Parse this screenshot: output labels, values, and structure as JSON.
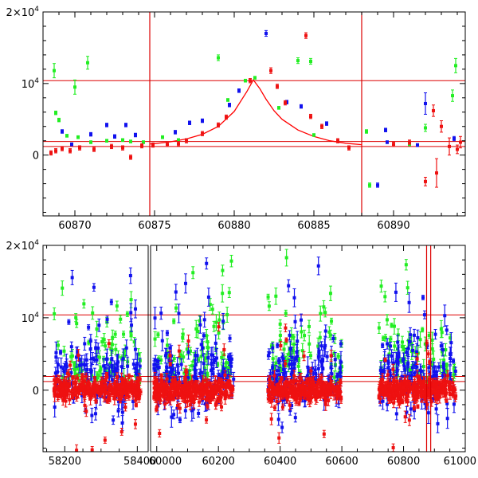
{
  "chart_data": [
    {
      "type": "scatter",
      "panel": "top",
      "title": "",
      "xlabel": "",
      "ylabel": "",
      "xlim": [
        60868,
        60894.5
      ],
      "ylim": [
        -8500,
        20000
      ],
      "x_ticks": [
        60870,
        60875,
        60880,
        60885,
        60890
      ],
      "x_tick_labels": [
        "60870",
        "60875",
        "60880",
        "60885",
        "60890"
      ],
      "y_ticks": [
        0,
        10000,
        20000
      ],
      "y_tick_labels": [
        {
          "base": "0",
          "sup": ""
        },
        {
          "base": "10",
          "sup": "4"
        },
        {
          "base": "2×10",
          "sup": "4"
        }
      ],
      "hlines": [
        1200,
        1900,
        10400
      ],
      "vlines": [
        60874.7,
        60888.0
      ],
      "model_curve": {
        "name": "model",
        "color": "#ff0000",
        "x": [
          60874.7,
          60875,
          60876,
          60877,
          60878,
          60879,
          60880,
          60880.8,
          60881.2,
          60881.6,
          60882,
          60882.5,
          60883,
          60884,
          60885,
          60886,
          60887,
          60888
        ],
        "y": [
          1550,
          1600,
          1850,
          2250,
          2900,
          4000,
          6100,
          8900,
          10500,
          9300,
          7800,
          6200,
          5000,
          3500,
          2600,
          2000,
          1650,
          1450
        ]
      },
      "series": [
        {
          "name": "green",
          "color": "#22ee22",
          "points": [
            {
              "x": 60868.7,
              "y": 11800,
              "err": 1000
            },
            {
              "x": 60868.8,
              "y": 5900,
              "err": 250
            },
            {
              "x": 60869.0,
              "y": 4900,
              "err": 250
            },
            {
              "x": 60869.5,
              "y": 2700,
              "err": 200
            },
            {
              "x": 60869.8,
              "y": 1500,
              "err": 200
            },
            {
              "x": 60870.0,
              "y": 9500,
              "err": 1000
            },
            {
              "x": 60870.2,
              "y": 2500,
              "err": 200
            },
            {
              "x": 60870.8,
              "y": 12900,
              "err": 900
            },
            {
              "x": 60871.0,
              "y": 1800,
              "err": 200
            },
            {
              "x": 60872.0,
              "y": 2000,
              "err": 200
            },
            {
              "x": 60873.0,
              "y": 2100,
              "err": 200
            },
            {
              "x": 60873.5,
              "y": 1900,
              "err": 200
            },
            {
              "x": 60874.3,
              "y": 1800,
              "err": 200
            },
            {
              "x": 60875.5,
              "y": 2500,
              "err": 200
            },
            {
              "x": 60876.5,
              "y": 2100,
              "err": 200
            },
            {
              "x": 60879.0,
              "y": 13600,
              "err": 400
            },
            {
              "x": 60879.6,
              "y": 7700,
              "err": 200
            },
            {
              "x": 60880.7,
              "y": 10400,
              "err": 200
            },
            {
              "x": 60881.3,
              "y": 10800,
              "err": 200
            },
            {
              "x": 60882.8,
              "y": 6600,
              "err": 200
            },
            {
              "x": 60884.0,
              "y": 13200,
              "err": 400
            },
            {
              "x": 60884.8,
              "y": 13100,
              "err": 400
            },
            {
              "x": 60885.0,
              "y": 2800,
              "err": 200
            },
            {
              "x": 60888.3,
              "y": 3300,
              "err": 250
            },
            {
              "x": 60888.5,
              "y": -4200,
              "err": 300
            },
            {
              "x": 60891.0,
              "y": 1500,
              "err": 200
            },
            {
              "x": 60892.0,
              "y": 3800,
              "err": 500
            },
            {
              "x": 60893.7,
              "y": 8300,
              "err": 800
            },
            {
              "x": 60893.9,
              "y": 12500,
              "err": 1000
            }
          ]
        },
        {
          "name": "blue",
          "color": "#1111ee",
          "points": [
            {
              "x": 60869.2,
              "y": 3300,
              "err": 250
            },
            {
              "x": 60869.8,
              "y": 1500,
              "err": 200
            },
            {
              "x": 60871.0,
              "y": 2900,
              "err": 250
            },
            {
              "x": 60872.0,
              "y": 4200,
              "err": 250
            },
            {
              "x": 60872.5,
              "y": 2600,
              "err": 250
            },
            {
              "x": 60873.2,
              "y": 4200,
              "err": 250
            },
            {
              "x": 60873.8,
              "y": 2800,
              "err": 250
            },
            {
              "x": 60876.3,
              "y": 3200,
              "err": 250
            },
            {
              "x": 60877.2,
              "y": 4500,
              "err": 250
            },
            {
              "x": 60878.0,
              "y": 4800,
              "err": 250
            },
            {
              "x": 60879.7,
              "y": 7000,
              "err": 250
            },
            {
              "x": 60880.3,
              "y": 9000,
              "err": 250
            },
            {
              "x": 60882.0,
              "y": 17000,
              "err": 400
            },
            {
              "x": 60883.3,
              "y": 7400,
              "err": 250
            },
            {
              "x": 60884.2,
              "y": 6800,
              "err": 250
            },
            {
              "x": 60885.8,
              "y": 4400,
              "err": 250
            },
            {
              "x": 60889.0,
              "y": -4200,
              "err": 300
            },
            {
              "x": 60889.5,
              "y": 3500,
              "err": 250
            },
            {
              "x": 60889.6,
              "y": 1800,
              "err": 200
            },
            {
              "x": 60891.5,
              "y": 1400,
              "err": 200
            },
            {
              "x": 60892.0,
              "y": 7200,
              "err": 1500
            },
            {
              "x": 60893.8,
              "y": 2300,
              "err": 300
            }
          ]
        },
        {
          "name": "red",
          "color": "#ee1111",
          "points": [
            {
              "x": 60868.5,
              "y": 300,
              "err": 300
            },
            {
              "x": 60868.8,
              "y": 600,
              "err": 300
            },
            {
              "x": 60869.2,
              "y": 900,
              "err": 300
            },
            {
              "x": 60869.7,
              "y": 600,
              "err": 300
            },
            {
              "x": 60870.3,
              "y": 1000,
              "err": 300
            },
            {
              "x": 60871.2,
              "y": 800,
              "err": 300
            },
            {
              "x": 60872.3,
              "y": 1200,
              "err": 300
            },
            {
              "x": 60873.0,
              "y": 1000,
              "err": 300
            },
            {
              "x": 60873.5,
              "y": -300,
              "err": 300
            },
            {
              "x": 60874.2,
              "y": 1300,
              "err": 300
            },
            {
              "x": 60874.9,
              "y": 1400,
              "err": 300
            },
            {
              "x": 60875.8,
              "y": 1500,
              "err": 300
            },
            {
              "x": 60876.5,
              "y": 1600,
              "err": 300
            },
            {
              "x": 60877.0,
              "y": 2000,
              "err": 300
            },
            {
              "x": 60878.0,
              "y": 3000,
              "err": 300
            },
            {
              "x": 60879.0,
              "y": 4200,
              "err": 300
            },
            {
              "x": 60879.5,
              "y": 5300,
              "err": 300
            },
            {
              "x": 60881.0,
              "y": 10400,
              "err": 300
            },
            {
              "x": 60882.3,
              "y": 11800,
              "err": 400
            },
            {
              "x": 60882.7,
              "y": 9600,
              "err": 300
            },
            {
              "x": 60883.2,
              "y": 7300,
              "err": 300
            },
            {
              "x": 60884.5,
              "y": 16700,
              "err": 400
            },
            {
              "x": 60884.8,
              "y": 5400,
              "err": 300
            },
            {
              "x": 60885.5,
              "y": 4000,
              "err": 300
            },
            {
              "x": 60886.5,
              "y": 2000,
              "err": 300
            },
            {
              "x": 60887.2,
              "y": 1000,
              "err": 300
            },
            {
              "x": 60890.0,
              "y": 1500,
              "err": 300
            },
            {
              "x": 60891.0,
              "y": 1800,
              "err": 300
            },
            {
              "x": 60892.0,
              "y": -3700,
              "err": 600
            },
            {
              "x": 60892.7,
              "y": -2500,
              "err": 2000
            },
            {
              "x": 60892.5,
              "y": 6200,
              "err": 800
            },
            {
              "x": 60893.0,
              "y": 4000,
              "err": 800
            },
            {
              "x": 60893.5,
              "y": 1200,
              "err": 1200
            },
            {
              "x": 60894.0,
              "y": 800,
              "err": 600
            },
            {
              "x": 60894.2,
              "y": 1800,
              "err": 800
            }
          ]
        }
      ]
    },
    {
      "type": "scatter",
      "panel": "bottom",
      "title": "",
      "xlabel": "",
      "ylabel": "",
      "xlim": [
        58140,
        61000
      ],
      "ylim": [
        -8500,
        20000
      ],
      "x_ticks": [
        58200,
        58400,
        60000,
        60200,
        60400,
        60600,
        60800,
        61000
      ],
      "x_tick_labels": [
        "58200",
        "58400",
        "60000",
        "60200",
        "60400",
        "60600",
        "60800",
        "61000"
      ],
      "y_ticks": [
        0,
        10000,
        20000
      ],
      "y_tick_labels": [
        {
          "base": "0",
          "sup": ""
        },
        {
          "base": "10",
          "sup": "4"
        },
        {
          "base": "2×10",
          "sup": "4"
        }
      ],
      "hlines": [
        1200,
        1900,
        10400
      ],
      "vlines": [
        60874.7,
        60888.0
      ],
      "x_axis_break": {
        "after": 58430,
        "resumes": 59980
      },
      "seasons": [
        {
          "start": 58170,
          "end": 58410
        },
        {
          "start": 59990,
          "end": 60250
        },
        {
          "start": 60360,
          "end": 60600
        },
        {
          "start": 60720,
          "end": 60970
        }
      ],
      "series_summary": "dense multi-season light curve; red points cluster near 0 with scatter ~1000, blue and green points scatter up to 2×10^4 with large error bars",
      "series": [
        {
          "name": "green",
          "color": "#22ee22"
        },
        {
          "name": "blue",
          "color": "#1111ee"
        },
        {
          "name": "red",
          "color": "#ee1111"
        }
      ]
    }
  ]
}
